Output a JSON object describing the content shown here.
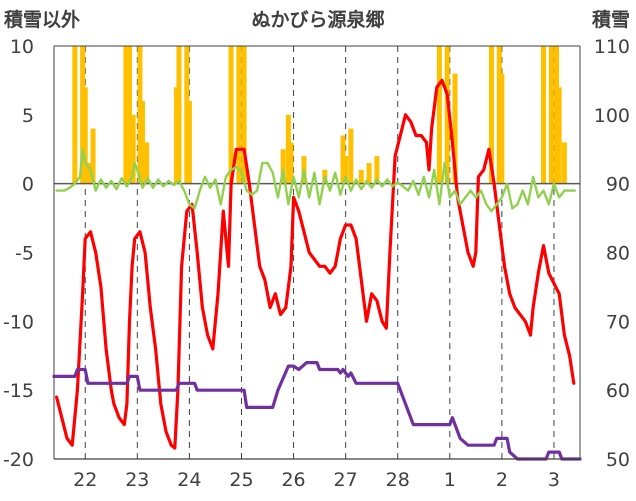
{
  "chart_data": {
    "type": "line",
    "title": "ぬかびら源泉郷",
    "ylabel_left": "積雪以外",
    "ylabel_right": "積雪",
    "left_axis": {
      "min": -20,
      "max": 10,
      "ticks": [
        "10",
        "5",
        "0",
        "-5",
        "-10",
        "-15",
        "-20"
      ]
    },
    "right_axis": {
      "min": 50,
      "max": 110,
      "ticks": [
        "110",
        "100",
        "90",
        "80",
        "70",
        "60",
        "50"
      ]
    },
    "x_categories": [
      "22",
      "23",
      "24",
      "25",
      "26",
      "27",
      "28",
      "1",
      "2",
      "3"
    ],
    "x_range": [
      -0.6,
      9.5
    ],
    "grid": {
      "vertical_dashed": true,
      "horizontal": false
    },
    "colors": {
      "bars": "#FFC000",
      "temperature": "#FF0000",
      "wind": "#92D050",
      "snow_depth": "#7030A0",
      "zero_line": "#595959"
    },
    "series": [
      {
        "kind": "bar",
        "axis": "left",
        "color": "#FFC000",
        "values": [
          [
            -0.2,
            10
          ],
          [
            -0.05,
            10
          ],
          [
            0.0,
            7
          ],
          [
            0.08,
            1.5
          ],
          [
            0.15,
            4
          ],
          [
            0.78,
            10
          ],
          [
            0.85,
            10
          ],
          [
            0.92,
            5
          ],
          [
            1.05,
            10
          ],
          [
            1.1,
            6
          ],
          [
            1.18,
            3
          ],
          [
            1.75,
            7
          ],
          [
            1.8,
            10
          ],
          [
            1.95,
            10
          ],
          [
            2.0,
            6
          ],
          [
            2.8,
            10
          ],
          [
            2.95,
            10
          ],
          [
            3.05,
            10
          ],
          [
            3.8,
            2.5
          ],
          [
            3.9,
            5
          ],
          [
            3.95,
            3
          ],
          [
            4.2,
            2
          ],
          [
            4.6,
            1
          ],
          [
            4.95,
            3.5
          ],
          [
            5.0,
            2
          ],
          [
            5.1,
            4
          ],
          [
            5.3,
            1
          ],
          [
            5.45,
            1.5
          ],
          [
            5.6,
            2
          ],
          [
            6.8,
            10
          ],
          [
            6.95,
            10
          ],
          [
            7.1,
            8
          ],
          [
            7.8,
            10
          ],
          [
            7.95,
            10
          ],
          [
            8.0,
            8
          ],
          [
            8.8,
            10
          ],
          [
            8.95,
            10
          ],
          [
            9.05,
            10
          ],
          [
            9.1,
            7
          ],
          [
            9.2,
            3
          ]
        ]
      },
      {
        "kind": "line",
        "axis": "left",
        "color": "#FF0000",
        "points": [
          [
            -0.55,
            -15.5
          ],
          [
            -0.45,
            -17
          ],
          [
            -0.35,
            -18.5
          ],
          [
            -0.25,
            -19
          ],
          [
            -0.15,
            -15
          ],
          [
            -0.05,
            -8
          ],
          [
            0.0,
            -4
          ],
          [
            0.1,
            -3.5
          ],
          [
            0.2,
            -5
          ],
          [
            0.3,
            -7.5
          ],
          [
            0.4,
            -12
          ],
          [
            0.5,
            -15
          ],
          [
            0.55,
            -16
          ],
          [
            0.65,
            -17
          ],
          [
            0.75,
            -17.5
          ],
          [
            0.8,
            -16
          ],
          [
            0.85,
            -10
          ],
          [
            0.9,
            -6
          ],
          [
            0.95,
            -4
          ],
          [
            1.05,
            -3.5
          ],
          [
            1.15,
            -5
          ],
          [
            1.25,
            -9
          ],
          [
            1.35,
            -12
          ],
          [
            1.45,
            -16
          ],
          [
            1.55,
            -18
          ],
          [
            1.65,
            -19
          ],
          [
            1.72,
            -19.2
          ],
          [
            1.78,
            -15
          ],
          [
            1.85,
            -6
          ],
          [
            1.95,
            -2
          ],
          [
            2.05,
            -1.5
          ],
          [
            2.15,
            -5
          ],
          [
            2.25,
            -9
          ],
          [
            2.35,
            -11
          ],
          [
            2.45,
            -12
          ],
          [
            2.55,
            -8
          ],
          [
            2.65,
            -2
          ],
          [
            2.75,
            -6
          ],
          [
            2.8,
            0
          ],
          [
            2.9,
            2.5
          ],
          [
            3.0,
            2.5
          ],
          [
            3.05,
            2.5
          ],
          [
            3.15,
            0
          ],
          [
            3.25,
            -3
          ],
          [
            3.35,
            -6
          ],
          [
            3.45,
            -7
          ],
          [
            3.55,
            -9
          ],
          [
            3.65,
            -8
          ],
          [
            3.75,
            -9.5
          ],
          [
            3.85,
            -9
          ],
          [
            3.95,
            -6
          ],
          [
            4.0,
            -1
          ],
          [
            4.1,
            -2
          ],
          [
            4.2,
            -3.5
          ],
          [
            4.3,
            -5
          ],
          [
            4.4,
            -5.5
          ],
          [
            4.5,
            -6
          ],
          [
            4.6,
            -6
          ],
          [
            4.7,
            -6.5
          ],
          [
            4.8,
            -6
          ],
          [
            4.9,
            -4
          ],
          [
            5.0,
            -3
          ],
          [
            5.1,
            -3
          ],
          [
            5.2,
            -4
          ],
          [
            5.3,
            -7
          ],
          [
            5.4,
            -10
          ],
          [
            5.5,
            -8
          ],
          [
            5.6,
            -8.5
          ],
          [
            5.7,
            -10
          ],
          [
            5.78,
            -10.5
          ],
          [
            5.85,
            -5
          ],
          [
            5.95,
            2
          ],
          [
            6.05,
            3.5
          ],
          [
            6.15,
            5
          ],
          [
            6.25,
            4.5
          ],
          [
            6.35,
            3.5
          ],
          [
            6.45,
            3.5
          ],
          [
            6.55,
            3
          ],
          [
            6.6,
            1
          ],
          [
            6.65,
            4
          ],
          [
            6.75,
            7
          ],
          [
            6.85,
            7.5
          ],
          [
            6.95,
            6.5
          ],
          [
            7.05,
            3
          ],
          [
            7.15,
            -1
          ],
          [
            7.25,
            -3
          ],
          [
            7.35,
            -5
          ],
          [
            7.45,
            -6
          ],
          [
            7.5,
            -5
          ],
          [
            7.55,
            0.5
          ],
          [
            7.65,
            1
          ],
          [
            7.75,
            2.5
          ],
          [
            7.85,
            0
          ],
          [
            7.95,
            -3
          ],
          [
            8.05,
            -6
          ],
          [
            8.15,
            -8
          ],
          [
            8.25,
            -9
          ],
          [
            8.35,
            -9.5
          ],
          [
            8.45,
            -10
          ],
          [
            8.55,
            -11
          ],
          [
            8.6,
            -9
          ],
          [
            8.7,
            -6.5
          ],
          [
            8.8,
            -4.5
          ],
          [
            8.9,
            -6.5
          ],
          [
            9.1,
            -8
          ],
          [
            9.2,
            -11
          ],
          [
            9.3,
            -12.5
          ],
          [
            9.38,
            -14.5
          ]
        ]
      },
      {
        "kind": "line",
        "axis": "left",
        "color": "#92D050",
        "points": [
          [
            -0.55,
            -0.5
          ],
          [
            -0.4,
            -0.5
          ],
          [
            -0.3,
            -0.3
          ],
          [
            -0.2,
            0
          ],
          [
            -0.1,
            0.5
          ],
          [
            -0.05,
            2.5
          ],
          [
            0.0,
            1.5
          ],
          [
            0.1,
            1
          ],
          [
            0.2,
            -0.5
          ],
          [
            0.3,
            0.3
          ],
          [
            0.4,
            -0.3
          ],
          [
            0.5,
            0.2
          ],
          [
            0.6,
            -0.4
          ],
          [
            0.7,
            0.4
          ],
          [
            0.8,
            -0.2
          ],
          [
            0.9,
            0.5
          ],
          [
            0.95,
            1.5
          ],
          [
            1.0,
            1
          ],
          [
            1.1,
            -0.3
          ],
          [
            1.2,
            0.4
          ],
          [
            1.3,
            -0.3
          ],
          [
            1.4,
            0.3
          ],
          [
            1.5,
            -0.2
          ],
          [
            1.6,
            0.2
          ],
          [
            1.7,
            -0.1
          ],
          [
            1.8,
            0.2
          ],
          [
            1.9,
            -0.5
          ],
          [
            2.0,
            -1.5
          ],
          [
            2.1,
            -1.8
          ],
          [
            2.2,
            -0.5
          ],
          [
            2.3,
            0.5
          ],
          [
            2.4,
            -0.3
          ],
          [
            2.5,
            0.3
          ],
          [
            2.6,
            -1.5
          ],
          [
            2.7,
            0.5
          ],
          [
            2.8,
            1
          ],
          [
            2.9,
            1.2
          ],
          [
            3.0,
            0.8
          ],
          [
            3.1,
            -0.5
          ],
          [
            3.2,
            -0.8
          ],
          [
            3.3,
            -0.5
          ],
          [
            3.4,
            1.5
          ],
          [
            3.5,
            1.5
          ],
          [
            3.6,
            0.8
          ],
          [
            3.7,
            -1
          ],
          [
            3.8,
            1
          ],
          [
            3.9,
            -1.5
          ],
          [
            4.0,
            0.5
          ],
          [
            4.1,
            -1
          ],
          [
            4.2,
            1
          ],
          [
            4.3,
            -1
          ],
          [
            4.4,
            0.8
          ],
          [
            4.5,
            -1.5
          ],
          [
            4.6,
            0.5
          ],
          [
            4.7,
            -0.5
          ],
          [
            4.8,
            0.8
          ],
          [
            4.9,
            -0.8
          ],
          [
            5.0,
            0.5
          ],
          [
            5.1,
            -0.5
          ],
          [
            5.2,
            0.3
          ],
          [
            5.3,
            -0.4
          ],
          [
            5.4,
            0.2
          ],
          [
            5.5,
            -0.3
          ],
          [
            5.6,
            0.3
          ],
          [
            5.7,
            -0.2
          ],
          [
            5.8,
            0.3
          ],
          [
            5.9,
            -0.2
          ],
          [
            6.0,
            0.1
          ],
          [
            6.1,
            -0.2
          ],
          [
            6.2,
            -0.5
          ],
          [
            6.3,
            0.2
          ],
          [
            6.4,
            -0.8
          ],
          [
            6.5,
            0.5
          ],
          [
            6.6,
            -1
          ],
          [
            6.7,
            1
          ],
          [
            6.8,
            -1.5
          ],
          [
            6.9,
            1.5
          ],
          [
            7.0,
            -1
          ],
          [
            7.1,
            -0.5
          ],
          [
            7.2,
            -1.5
          ],
          [
            7.3,
            -1
          ],
          [
            7.4,
            -0.5
          ],
          [
            7.5,
            -1
          ],
          [
            7.6,
            -0.5
          ],
          [
            7.7,
            -1.5
          ],
          [
            7.8,
            -2
          ],
          [
            7.9,
            -1.5
          ],
          [
            8.0,
            -1
          ],
          [
            8.1,
            0
          ],
          [
            8.2,
            -1.8
          ],
          [
            8.3,
            -1.5
          ],
          [
            8.4,
            -0.5
          ],
          [
            8.5,
            -1.5
          ],
          [
            8.6,
            0.5
          ],
          [
            8.7,
            -1
          ],
          [
            8.8,
            -0.5
          ],
          [
            8.9,
            -1.5
          ],
          [
            9.0,
            0
          ],
          [
            9.1,
            -1
          ],
          [
            9.2,
            -0.5
          ],
          [
            9.3,
            -0.5
          ],
          [
            9.4,
            -0.5
          ]
        ]
      },
      {
        "kind": "line",
        "axis": "right",
        "color": "#7030A0",
        "points": [
          [
            -0.6,
            62
          ],
          [
            -0.2,
            62
          ],
          [
            -0.15,
            63
          ],
          [
            0.0,
            63
          ],
          [
            0.05,
            61
          ],
          [
            0.8,
            61
          ],
          [
            0.85,
            62
          ],
          [
            1.0,
            62
          ],
          [
            1.05,
            60
          ],
          [
            1.75,
            60
          ],
          [
            1.8,
            61
          ],
          [
            2.1,
            61
          ],
          [
            2.15,
            60
          ],
          [
            3.05,
            60
          ],
          [
            3.1,
            57.5
          ],
          [
            3.6,
            57.5
          ],
          [
            3.7,
            60
          ],
          [
            3.9,
            63.5
          ],
          [
            4.0,
            63.5
          ],
          [
            4.1,
            63
          ],
          [
            4.25,
            64
          ],
          [
            4.45,
            64
          ],
          [
            4.5,
            63
          ],
          [
            4.85,
            63
          ],
          [
            4.9,
            62.5
          ],
          [
            4.95,
            63
          ],
          [
            5.05,
            62
          ],
          [
            5.1,
            62.5
          ],
          [
            5.2,
            61
          ],
          [
            6.0,
            61
          ],
          [
            6.1,
            59
          ],
          [
            6.2,
            57
          ],
          [
            6.3,
            55
          ],
          [
            7.0,
            55
          ],
          [
            7.05,
            56
          ],
          [
            7.2,
            53
          ],
          [
            7.35,
            52
          ],
          [
            7.85,
            52
          ],
          [
            7.9,
            53
          ],
          [
            8.1,
            53
          ],
          [
            8.15,
            51
          ],
          [
            8.3,
            50
          ],
          [
            8.85,
            50
          ],
          [
            8.9,
            51
          ],
          [
            9.1,
            51
          ],
          [
            9.15,
            50
          ],
          [
            9.5,
            50
          ]
        ]
      }
    ]
  }
}
